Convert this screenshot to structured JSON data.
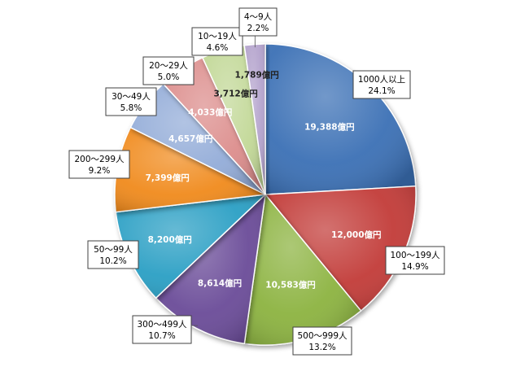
{
  "chart_data": {
    "type": "pie",
    "categories": [
      "1000人以上",
      "100〜199人",
      "500〜999人",
      "300〜499人",
      "50〜99人",
      "200〜299人",
      "30〜49人",
      "20〜29人",
      "10〜19人",
      "4〜9人"
    ],
    "values": [
      19388,
      12000,
      10583,
      8614,
      8200,
      7399,
      4657,
      4033,
      3712,
      1789
    ],
    "value_labels": [
      "19,388億円",
      "12,000億円",
      "10,583億円",
      "8,614億円",
      "8,200億円",
      "7,399億円",
      "4,657億円",
      "4,033億円",
      "3,712億円",
      "1,789億円"
    ],
    "percent_labels": [
      "24.1%",
      "14.9%",
      "13.2%",
      "10.7%",
      "10.2%",
      "9.2%",
      "5.8%",
      "5.0%",
      "4.6%",
      "2.2%"
    ],
    "colors": [
      "#3a6fb5",
      "#c23a37",
      "#8cb33f",
      "#6a4c98",
      "#2b9fc4",
      "#f08a1e",
      "#93acd8",
      "#dc8d8c",
      "#c2d897",
      "#b3a2cc"
    ],
    "start_angle_deg": 0,
    "direction": "clockwise",
    "legend": "none",
    "title": ""
  }
}
